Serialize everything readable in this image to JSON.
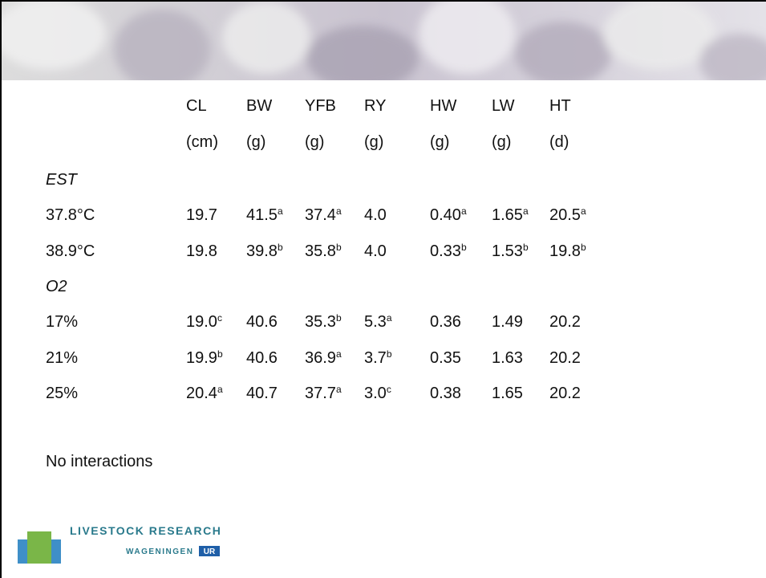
{
  "table": {
    "columns": [
      "CL",
      "BW",
      "YFB",
      "RY",
      "HW",
      "LW",
      "HT"
    ],
    "units": [
      "(cm)",
      "(g)",
      "(g)",
      "(g)",
      "(g)",
      "(g)",
      "(d)"
    ],
    "sections": [
      {
        "title": "EST",
        "rows": [
          {
            "label": "37.8°C",
            "cells": [
              {
                "value": "19.7"
              },
              {
                "value": "41.5",
                "sup": "a"
              },
              {
                "value": "37.4",
                "sup": "a"
              },
              {
                "value": "4.0"
              },
              {
                "value": "0.40",
                "sup": "a"
              },
              {
                "value": "1.65",
                "sup": "a"
              },
              {
                "value": "20.5",
                "sup": "a"
              }
            ]
          },
          {
            "label": "38.9°C",
            "cells": [
              {
                "value": "19.8"
              },
              {
                "value": "39.8",
                "sup": "b"
              },
              {
                "value": "35.8",
                "sup": "b"
              },
              {
                "value": "4.0"
              },
              {
                "value": "0.33",
                "sup": "b"
              },
              {
                "value": "1.53",
                "sup": "b"
              },
              {
                "value": "19.8",
                "sup": "b"
              }
            ]
          }
        ]
      },
      {
        "title": "O2",
        "rows": [
          {
            "label": "17%",
            "cells": [
              {
                "value": "19.0",
                "sup": "c"
              },
              {
                "value": "40.6"
              },
              {
                "value": "35.3",
                "sup": "b"
              },
              {
                "value": "5.3",
                "sup": "a"
              },
              {
                "value": "0.36"
              },
              {
                "value": "1.49"
              },
              {
                "value": "20.2"
              }
            ]
          },
          {
            "label": "21%",
            "cells": [
              {
                "value": "19.9",
                "sup": "b"
              },
              {
                "value": "40.6"
              },
              {
                "value": "36.9",
                "sup": "a"
              },
              {
                "value": "3.7",
                "sup": "b"
              },
              {
                "value": "0.35"
              },
              {
                "value": "1.63"
              },
              {
                "value": "20.2"
              }
            ]
          },
          {
            "label": "25%",
            "cells": [
              {
                "value": "20.4",
                "sup": "a"
              },
              {
                "value": "40.7"
              },
              {
                "value": "37.7",
                "sup": "a"
              },
              {
                "value": "3.0",
                "sup": "c"
              },
              {
                "value": "0.38"
              },
              {
                "value": "1.65"
              },
              {
                "value": "20.2"
              }
            ]
          }
        ]
      }
    ]
  },
  "note": "No interactions",
  "logo": {
    "line1": "LIVESTOCK RESEARCH",
    "line2": "WAGENINGEN",
    "badge": "UR"
  }
}
